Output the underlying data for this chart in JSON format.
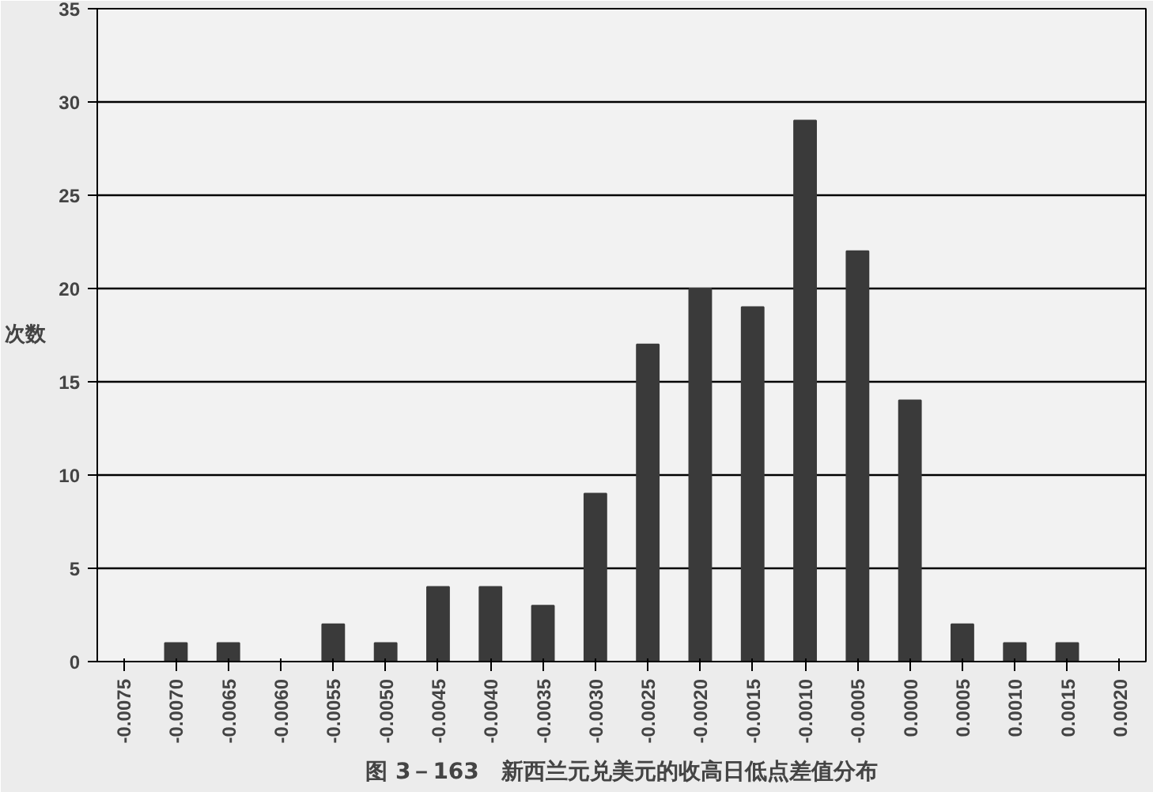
{
  "chart_data": {
    "type": "bar",
    "title": "图 3－163　新西兰元兑美元的收高日低点差值分布",
    "ylabel": "次数",
    "categories": [
      "-0.0075",
      "-0.0070",
      "-0.0065",
      "-0.0060",
      "-0.0055",
      "-0.0050",
      "-0.0045",
      "-0.0040",
      "-0.0035",
      "-0.0030",
      "-0.0025",
      "-0.0020",
      "-0.0015",
      "-0.0010",
      "-0.0005",
      "0.0000",
      "0.0005",
      "0.0010",
      "0.0015",
      "0.0020"
    ],
    "values": [
      0,
      1,
      1,
      0,
      2,
      1,
      4,
      4,
      3,
      9,
      17,
      20,
      19,
      29,
      22,
      14,
      2,
      1,
      1,
      0
    ],
    "color": "#3a3a3a",
    "ylim": [
      0,
      35
    ],
    "yticks": [
      0,
      5,
      10,
      15,
      20,
      25,
      30,
      35
    ],
    "grid": "y"
  }
}
